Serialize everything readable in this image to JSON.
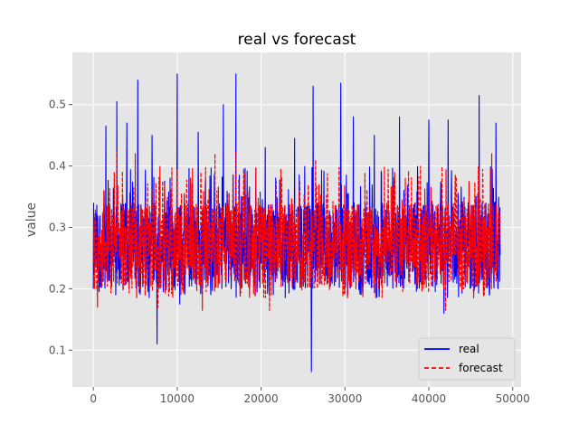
{
  "chart_data": {
    "type": "line",
    "title": "real vs forecast",
    "xlabel": "",
    "ylabel": "value",
    "xlim": [
      -2500,
      51000
    ],
    "ylim": [
      0.04,
      0.585
    ],
    "xticks": [
      0,
      10000,
      20000,
      30000,
      40000,
      50000
    ],
    "xtick_labels": [
      "0",
      "10000",
      "20000",
      "30000",
      "40000",
      "50000"
    ],
    "yticks": [
      0.1,
      0.2,
      0.3,
      0.4,
      0.5
    ],
    "ytick_labels": [
      "0.1",
      "0.2",
      "0.3",
      "0.4",
      "0.5"
    ],
    "grid": true,
    "legend_position": "lower-right",
    "series": [
      {
        "name": "real",
        "color": "#0000ff",
        "style": "solid",
        "x_range": [
          0,
          48500
        ],
        "typical_band": [
          0.2,
          0.34
        ],
        "peaks": [
          {
            "x": 0,
            "y": 0.425
          },
          {
            "x": 1500,
            "y": 0.465
          },
          {
            "x": 2800,
            "y": 0.505
          },
          {
            "x": 4000,
            "y": 0.47
          },
          {
            "x": 5300,
            "y": 0.54
          },
          {
            "x": 7000,
            "y": 0.45
          },
          {
            "x": 10000,
            "y": 0.55
          },
          {
            "x": 12500,
            "y": 0.455
          },
          {
            "x": 15500,
            "y": 0.5
          },
          {
            "x": 17000,
            "y": 0.55
          },
          {
            "x": 20500,
            "y": 0.43
          },
          {
            "x": 24000,
            "y": 0.445
          },
          {
            "x": 26200,
            "y": 0.53
          },
          {
            "x": 29500,
            "y": 0.535
          },
          {
            "x": 31000,
            "y": 0.48
          },
          {
            "x": 33500,
            "y": 0.45
          },
          {
            "x": 36500,
            "y": 0.48
          },
          {
            "x": 40000,
            "y": 0.475
          },
          {
            "x": 42300,
            "y": 0.475
          },
          {
            "x": 46000,
            "y": 0.515
          },
          {
            "x": 48000,
            "y": 0.47
          }
        ],
        "troughs": [
          {
            "x": 0,
            "y": 0.2
          },
          {
            "x": 7600,
            "y": 0.11
          },
          {
            "x": 10300,
            "y": 0.175
          },
          {
            "x": 26000,
            "y": 0.065
          },
          {
            "x": 41800,
            "y": 0.16
          }
        ]
      },
      {
        "name": "forecast",
        "color": "#ff0000",
        "style": "dashed",
        "x_range": [
          0,
          48500
        ],
        "typical_band": [
          0.2,
          0.34
        ],
        "peaks": [
          {
            "x": 2800,
            "y": 0.425
          },
          {
            "x": 5000,
            "y": 0.42
          },
          {
            "x": 10000,
            "y": 0.395
          },
          {
            "x": 14500,
            "y": 0.42
          },
          {
            "x": 17000,
            "y": 0.425
          },
          {
            "x": 26500,
            "y": 0.41
          },
          {
            "x": 42000,
            "y": 0.42
          },
          {
            "x": 47500,
            "y": 0.42
          }
        ],
        "troughs": [
          {
            "x": 500,
            "y": 0.17
          },
          {
            "x": 7700,
            "y": 0.17
          },
          {
            "x": 13000,
            "y": 0.165
          },
          {
            "x": 21000,
            "y": 0.165
          },
          {
            "x": 42000,
            "y": 0.165
          }
        ]
      }
    ]
  }
}
